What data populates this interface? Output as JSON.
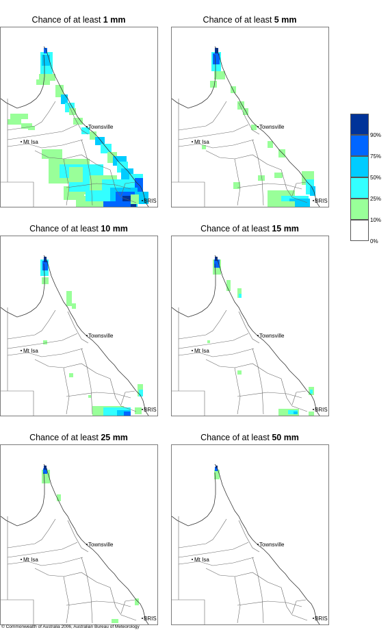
{
  "panels": [
    {
      "title_prefix": "Chance of at least ",
      "amount": "1 mm",
      "level": 0
    },
    {
      "title_prefix": "Chance of at least ",
      "amount": "5 mm",
      "level": 1
    },
    {
      "title_prefix": "Chance of at least ",
      "amount": "10 mm",
      "level": 2
    },
    {
      "title_prefix": "Chance of at least ",
      "amount": "15 mm",
      "level": 3
    },
    {
      "title_prefix": "Chance of at least ",
      "amount": "25 mm",
      "level": 4
    },
    {
      "title_prefix": "Chance of at least ",
      "amount": "50 mm",
      "level": 5
    }
  ],
  "places": {
    "townsville": "Townsville",
    "mt_isa": "Mt Isa",
    "brisbane": "BRIS"
  },
  "legend": {
    "ticks": [
      "90%",
      "75%",
      "50%",
      "25%",
      "10%",
      "0%"
    ],
    "colors": [
      "#003399",
      "#0066ff",
      "#00ccff",
      "#33ffff",
      "#99ff99",
      "#ffffff"
    ]
  },
  "copyright": "© Commonwealth of Australia 2006, Australian Bureau of Meteorology"
}
